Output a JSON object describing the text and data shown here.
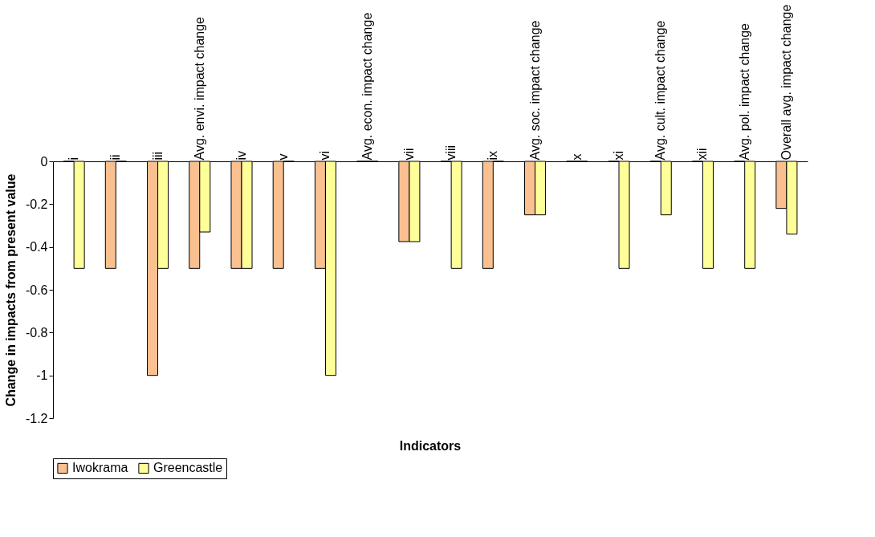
{
  "chart_data": {
    "type": "bar",
    "xlabel": "Indicators",
    "ylabel": "Change in impacts from present value",
    "categories": [
      "i",
      "ii",
      "iii",
      "Avg. envi. impact change",
      "iv",
      "v",
      "vi",
      "Avg. econ. impact change",
      "vii",
      "viii",
      "ix",
      "Avg. soc. impact change",
      "x",
      "xi",
      "Avg. cult. impact change",
      "xii",
      "Avg. pol. impact change",
      "Overall avg. impact change"
    ],
    "series": [
      {
        "name": "Iwokrama",
        "color": "#fac090",
        "values": [
          0,
          -0.5,
          -1,
          -0.5,
          -0.5,
          -0.5,
          -0.5,
          0,
          -0.375,
          0,
          -0.5,
          -0.25,
          0,
          0,
          0,
          0,
          0,
          -0.22
        ]
      },
      {
        "name": "Greencastle",
        "color": "#ffff99",
        "values": [
          -0.5,
          0,
          -0.5,
          -0.33,
          -0.5,
          0,
          -1,
          0,
          -0.375,
          -0.5,
          0,
          -0.25,
          0,
          -0.5,
          -0.25,
          -0.5,
          -0.5,
          -0.34
        ]
      }
    ],
    "ylim": [
      -1.2,
      0
    ],
    "yticks": [
      -1.2,
      -1,
      -0.8,
      -0.6,
      -0.4,
      -0.2,
      0
    ],
    "grid": false,
    "legend": "bottom"
  }
}
